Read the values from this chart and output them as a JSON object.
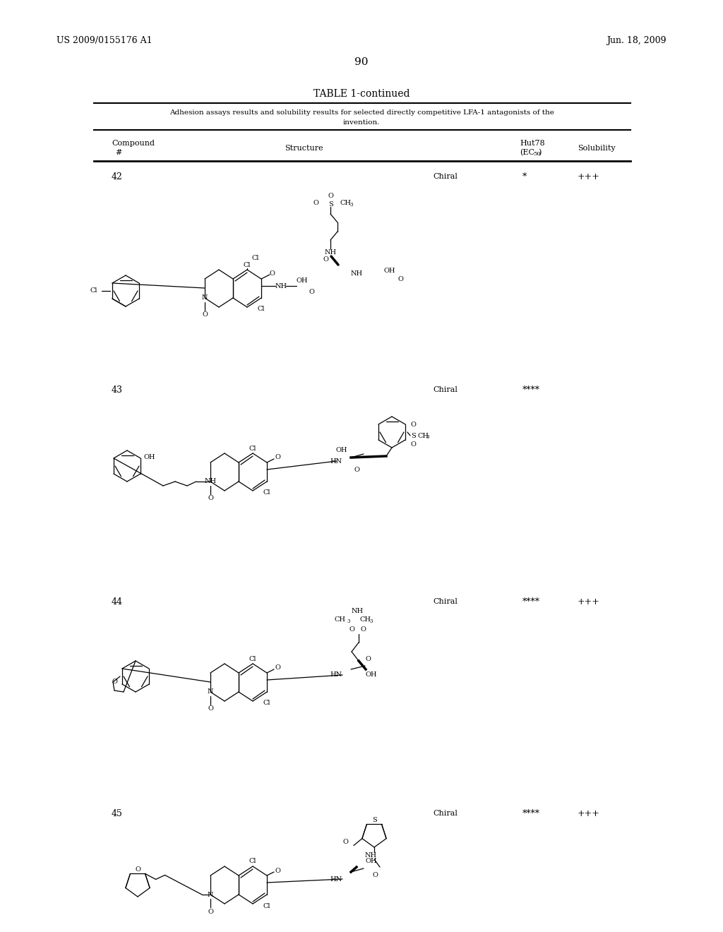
{
  "page_number": "90",
  "patent_number": "US 2009/0155176 A1",
  "patent_date": "Jun. 18, 2009",
  "table_title": "TABLE 1-continued",
  "table_caption_1": "Adhesion assays results and solubility results for selected directly competitive LFA-1 antagonists of the",
  "table_caption_2": "invention.",
  "bg_color": "#ffffff",
  "text_color": "#000000",
  "line_color": "#000000"
}
